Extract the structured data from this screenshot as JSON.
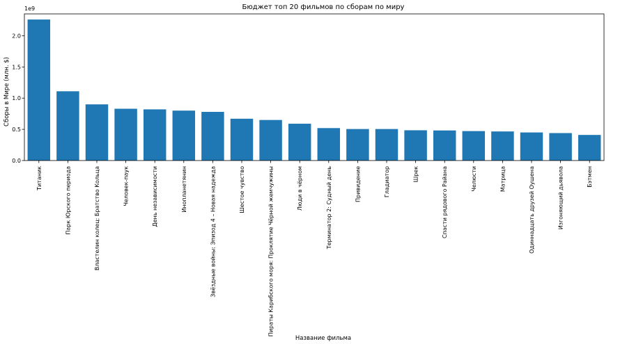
{
  "chart_data": {
    "type": "bar",
    "title": "Бюджет топ 20 фильмов по сборам по миру",
    "xlabel": "Название фильма",
    "ylabel": "Сборы в Мире (млн. $)",
    "y_offset_label": "1e9",
    "ylim": [
      0,
      2.35
    ],
    "yticks": [
      "0.0",
      "0.5",
      "1.0",
      "1.5",
      "2.0"
    ],
    "grid": false,
    "bar_color": "#1f77b4",
    "categories": [
      "Титаник",
      "Парк Юрского периода",
      "Властелин колец: Братство Кольца",
      "Человек-паук",
      "День независимости",
      "Инопланетянин",
      "Звёздные войны: Эпизод 4 – Новая надежда",
      "Шестое чувство",
      "Пираты Карибского моря: Проклятие Чёрной жемчужины",
      "Люди в чёрном",
      "Терминатор 2: Судный день",
      "Привидение",
      "Гладиатор",
      "Шрек",
      "Спасти рядового Райана",
      "Челюсти",
      "Матрица",
      "Одиннадцать друзей Оушена",
      "Изгоняющий дьявола",
      "Бэтмен"
    ],
    "values": [
      2.26,
      1.11,
      0.9,
      0.83,
      0.82,
      0.8,
      0.78,
      0.67,
      0.65,
      0.59,
      0.52,
      0.505,
      0.505,
      0.485,
      0.482,
      0.472,
      0.466,
      0.45,
      0.44,
      0.41
    ]
  }
}
